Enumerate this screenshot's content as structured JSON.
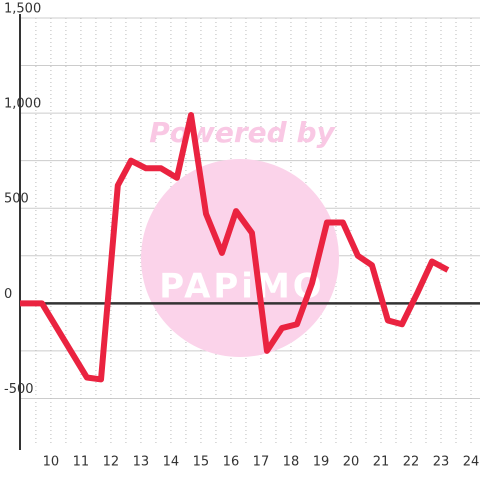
{
  "chart_data": {
    "type": "line",
    "watermark": {
      "top": "Powered by",
      "logo": "PAPiMO"
    },
    "x": [
      8.97,
      9.7,
      11.2,
      11.67,
      12.23,
      12.67,
      13.17,
      13.67,
      14.2,
      14.67,
      15.17,
      15.7,
      16.17,
      16.7,
      17.2,
      17.7,
      18.2,
      18.7,
      19.2,
      19.73,
      20.23,
      20.7,
      21.23,
      21.7,
      22.23,
      22.7,
      23.23
    ],
    "series": [
      {
        "color": "#ea2340",
        "values": [
          0,
          0,
          -390,
          -400,
          620,
          750,
          710,
          710,
          660,
          990,
          470,
          265,
          485,
          370,
          -250,
          -130,
          -110,
          105,
          425,
          425,
          250,
          200,
          -90,
          -110,
          60,
          220,
          175
        ]
      }
    ],
    "xlim": [
      8.97,
      24.3
    ],
    "ylim": [
      -750,
      1500
    ],
    "xticks": [
      10,
      11,
      12,
      13,
      14,
      15,
      16,
      17,
      18,
      19,
      20,
      21,
      22,
      23,
      24
    ],
    "xminorticks": [
      9.5,
      10.5,
      11.5,
      12.5,
      13.5,
      14.5,
      15.5,
      16.5,
      17.5,
      18.5,
      19.5,
      20.5,
      21.5,
      22.5,
      23.5
    ],
    "yticks": [
      {
        "value": -500,
        "label": "-500"
      },
      0,
      500,
      {
        "value": 1000,
        "label": "1,000"
      },
      {
        "value": 1500,
        "label": "1,500"
      }
    ],
    "yminorticks": [
      -250,
      250,
      750,
      1250
    ],
    "grid": true
  }
}
